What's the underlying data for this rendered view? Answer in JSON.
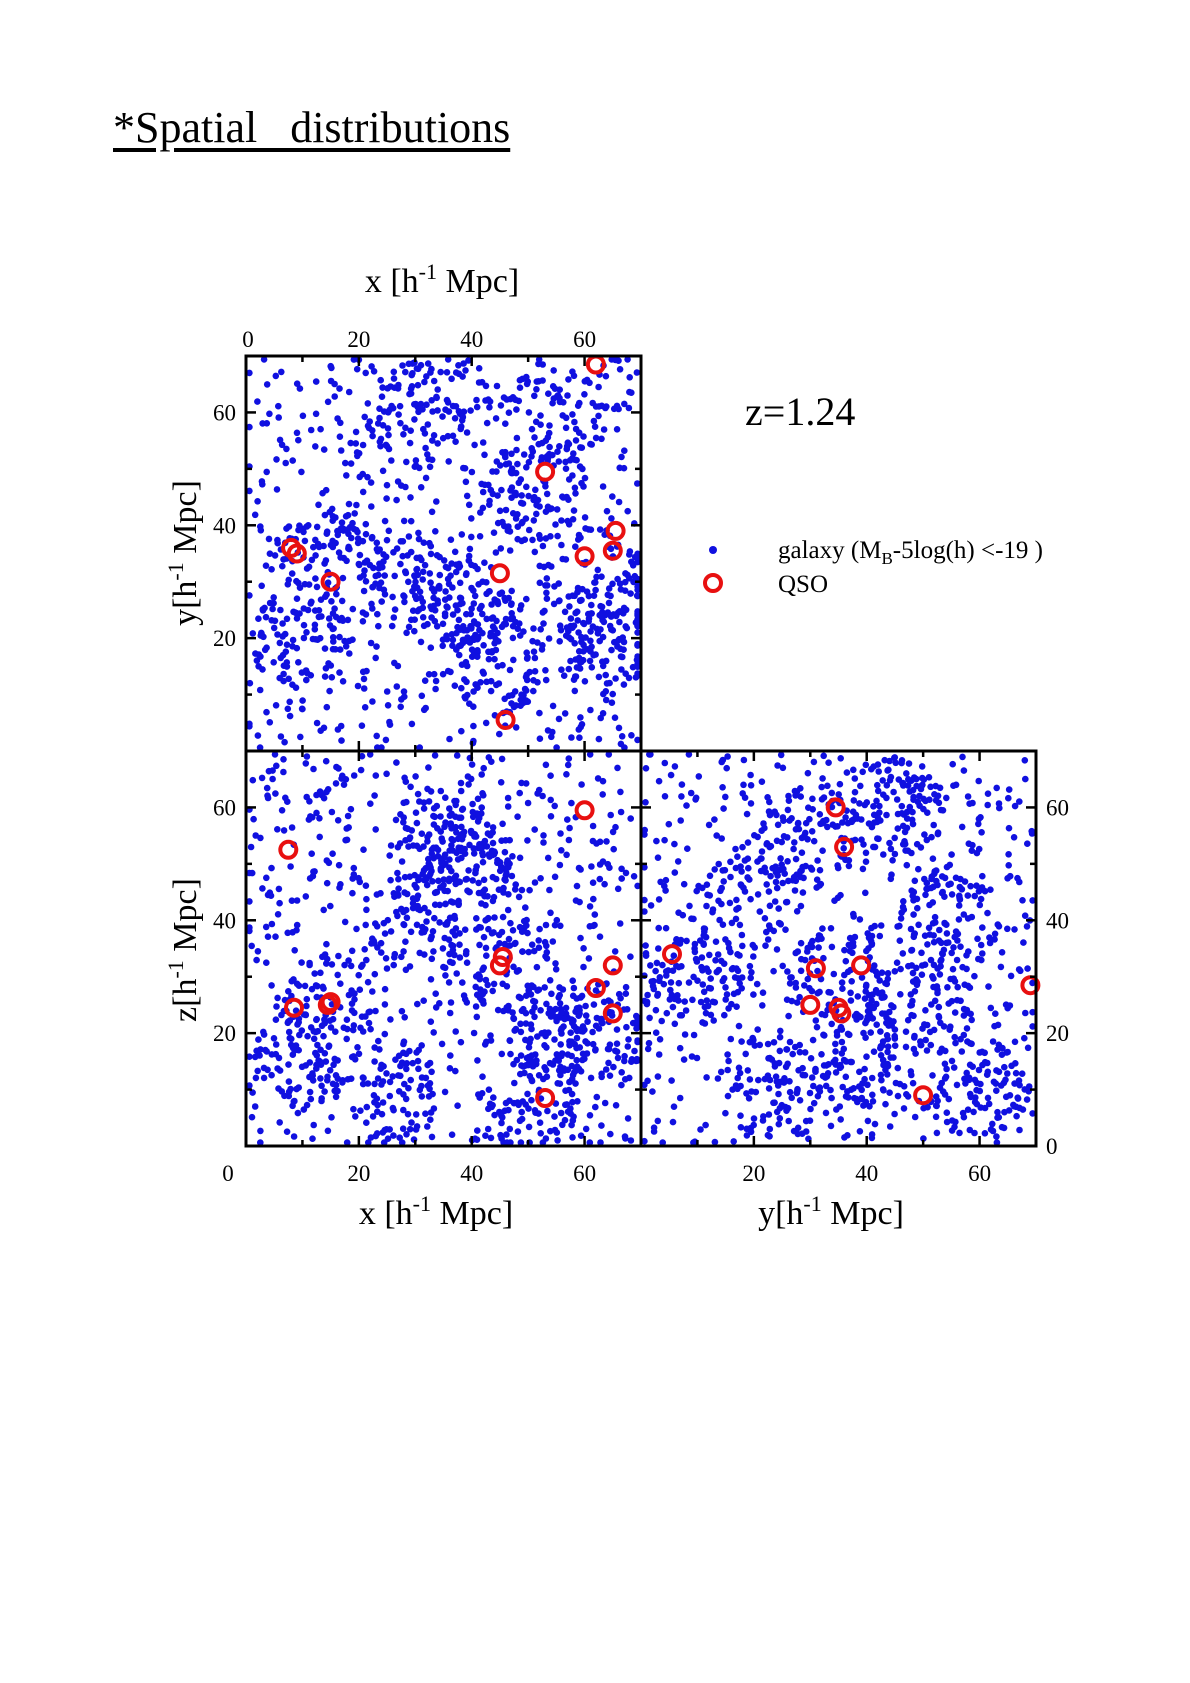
{
  "page": {
    "heading": "*Spatial   distributions"
  },
  "chart_data": {
    "type": "scatter",
    "annotation": "z=1.24",
    "legend": {
      "placement": "right",
      "galaxy": {
        "prefix": "galaxy (M",
        "subscript": "B",
        "suffix": "-5log(h) <-19 )"
      },
      "qso": "QSO"
    },
    "colors": {
      "galaxy": "#1010e0",
      "qso": "#e81010"
    },
    "axis_labels": {
      "x_main": "x [h",
      "y_main": "y[h",
      "z_main": "z[h",
      "sup": "-1",
      "unit": " Mpc]"
    },
    "axis_range": [
      0,
      70
    ],
    "ticks": [
      {
        "v": 0,
        "label": "0"
      },
      {
        "v": 20,
        "label": "20"
      },
      {
        "v": 40,
        "label": "40"
      },
      {
        "v": 60,
        "label": "60"
      }
    ],
    "panels": [
      {
        "id": "xy",
        "xaxis": "x",
        "yaxis": "y",
        "galaxy_count": 1400,
        "seed": 11,
        "clusters": [
          [
            62,
            30
          ],
          [
            64,
            20
          ],
          [
            45,
            15
          ],
          [
            40,
            25
          ],
          [
            10,
            20
          ],
          [
            50,
            45
          ],
          [
            30,
            60
          ],
          [
            55,
            60
          ],
          [
            15,
            35
          ],
          [
            30,
            30
          ]
        ],
        "qso": [
          [
            8,
            36
          ],
          [
            9,
            35
          ],
          [
            15,
            30
          ],
          [
            45,
            31.5
          ],
          [
            46,
            5.5
          ],
          [
            53,
            49.5
          ],
          [
            60,
            34.5
          ],
          [
            65,
            35.5
          ],
          [
            65.5,
            39
          ],
          [
            62,
            68.5
          ]
        ]
      },
      {
        "id": "xz",
        "xaxis": "x",
        "yaxis": "z",
        "galaxy_count": 1400,
        "seed": 23,
        "clusters": [
          [
            45,
            32
          ],
          [
            55,
            20
          ],
          [
            62,
            20
          ],
          [
            35,
            55
          ],
          [
            15,
            25
          ],
          [
            30,
            40
          ],
          [
            50,
            8
          ],
          [
            40,
            50
          ],
          [
            10,
            15
          ],
          [
            25,
            10
          ]
        ],
        "qso": [
          [
            7.5,
            52.5
          ],
          [
            8.5,
            24.5
          ],
          [
            14.5,
            25
          ],
          [
            15,
            25.5
          ],
          [
            45,
            32
          ],
          [
            45.5,
            33.5
          ],
          [
            53,
            8.5
          ],
          [
            60,
            59.5
          ],
          [
            62,
            28
          ],
          [
            65,
            32
          ],
          [
            65,
            23.5
          ]
        ]
      },
      {
        "id": "yz",
        "xaxis": "y",
        "yaxis": "z",
        "galaxy_count": 1400,
        "seed": 37,
        "clusters": [
          [
            20,
            45
          ],
          [
            35,
            30
          ],
          [
            40,
            15
          ],
          [
            55,
            40
          ],
          [
            60,
            10
          ],
          [
            30,
            55
          ],
          [
            10,
            30
          ],
          [
            50,
            25
          ],
          [
            25,
            10
          ],
          [
            45,
            60
          ]
        ],
        "qso": [
          [
            5.5,
            34
          ],
          [
            30,
            25
          ],
          [
            31,
            31.5
          ],
          [
            34.5,
            60
          ],
          [
            35,
            24.5
          ],
          [
            35.5,
            23.5
          ],
          [
            36,
            53
          ],
          [
            39,
            32
          ],
          [
            50,
            9
          ],
          [
            69,
            28.5
          ]
        ]
      }
    ]
  }
}
